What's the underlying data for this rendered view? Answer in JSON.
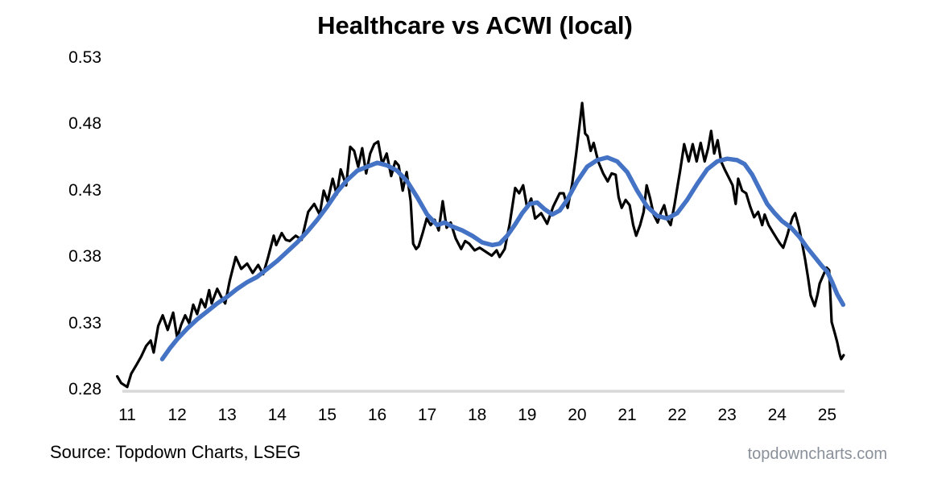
{
  "title": "Healthcare vs ACWI (local)",
  "source": "Source: Topdown Charts, LSEG",
  "watermark": "topdowncharts.com",
  "colors": {
    "black_line": "#000000",
    "blue_line": "#4472C4",
    "baseline": "#D9D9D9",
    "text": "#000000",
    "watermark_text": "#8a9099"
  },
  "chart_data": {
    "type": "line",
    "title": "Healthcare vs ACWI (local)",
    "xlabel": "",
    "ylabel": "",
    "grid": false,
    "legend": "none",
    "x_axis": {
      "min": 10.75,
      "max": 25.5,
      "ticks": [
        11,
        12,
        13,
        14,
        15,
        16,
        17,
        18,
        19,
        20,
        21,
        22,
        23,
        24,
        25
      ]
    },
    "y_axis": {
      "min": 0.28,
      "max": 0.53,
      "ticks": [
        0.53,
        0.48,
        0.43,
        0.38,
        0.33,
        0.28
      ]
    },
    "series": [
      {
        "name": "black",
        "description": "Healthcare vs ACWI relative ratio (daily, local currency)",
        "color": "#000000",
        "width": 3.2,
        "points": [
          [
            10.8,
            0.29
          ],
          [
            10.88,
            0.285
          ],
          [
            11.0,
            0.282
          ],
          [
            11.08,
            0.292
          ],
          [
            11.19,
            0.299
          ],
          [
            11.28,
            0.305
          ],
          [
            11.38,
            0.313
          ],
          [
            11.47,
            0.317
          ],
          [
            11.53,
            0.308
          ],
          [
            11.62,
            0.328
          ],
          [
            11.71,
            0.336
          ],
          [
            11.81,
            0.325
          ],
          [
            11.92,
            0.338
          ],
          [
            12.0,
            0.319
          ],
          [
            12.08,
            0.329
          ],
          [
            12.16,
            0.336
          ],
          [
            12.24,
            0.33
          ],
          [
            12.32,
            0.344
          ],
          [
            12.4,
            0.337
          ],
          [
            12.48,
            0.348
          ],
          [
            12.56,
            0.342
          ],
          [
            12.64,
            0.355
          ],
          [
            12.69,
            0.345
          ],
          [
            12.8,
            0.356
          ],
          [
            12.88,
            0.35
          ],
          [
            12.96,
            0.345
          ],
          [
            13.05,
            0.362
          ],
          [
            13.17,
            0.38
          ],
          [
            13.28,
            0.371
          ],
          [
            13.4,
            0.375
          ],
          [
            13.51,
            0.368
          ],
          [
            13.62,
            0.374
          ],
          [
            13.72,
            0.367
          ],
          [
            13.82,
            0.38
          ],
          [
            13.93,
            0.396
          ],
          [
            13.98,
            0.389
          ],
          [
            14.09,
            0.398
          ],
          [
            14.17,
            0.393
          ],
          [
            14.25,
            0.392
          ],
          [
            14.37,
            0.396
          ],
          [
            14.49,
            0.393
          ],
          [
            14.62,
            0.414
          ],
          [
            14.74,
            0.42
          ],
          [
            14.85,
            0.412
          ],
          [
            14.93,
            0.43
          ],
          [
            15.01,
            0.422
          ],
          [
            15.11,
            0.439
          ],
          [
            15.19,
            0.427
          ],
          [
            15.27,
            0.446
          ],
          [
            15.38,
            0.434
          ],
          [
            15.46,
            0.463
          ],
          [
            15.54,
            0.46
          ],
          [
            15.62,
            0.448
          ],
          [
            15.7,
            0.462
          ],
          [
            15.78,
            0.443
          ],
          [
            15.86,
            0.458
          ],
          [
            15.94,
            0.465
          ],
          [
            16.02,
            0.467
          ],
          [
            16.1,
            0.45
          ],
          [
            16.19,
            0.458
          ],
          [
            16.28,
            0.441
          ],
          [
            16.36,
            0.452
          ],
          [
            16.43,
            0.449
          ],
          [
            16.51,
            0.43
          ],
          [
            16.59,
            0.444
          ],
          [
            16.67,
            0.422
          ],
          [
            16.72,
            0.39
          ],
          [
            16.78,
            0.386
          ],
          [
            16.83,
            0.388
          ],
          [
            16.91,
            0.398
          ],
          [
            16.99,
            0.409
          ],
          [
            17.07,
            0.404
          ],
          [
            17.15,
            0.408
          ],
          [
            17.23,
            0.4
          ],
          [
            17.31,
            0.422
          ],
          [
            17.39,
            0.402
          ],
          [
            17.47,
            0.406
          ],
          [
            17.57,
            0.394
          ],
          [
            17.68,
            0.386
          ],
          [
            17.76,
            0.392
          ],
          [
            17.84,
            0.39
          ],
          [
            17.95,
            0.385
          ],
          [
            18.05,
            0.387
          ],
          [
            18.17,
            0.384
          ],
          [
            18.29,
            0.381
          ],
          [
            18.39,
            0.385
          ],
          [
            18.45,
            0.38
          ],
          [
            18.55,
            0.386
          ],
          [
            18.65,
            0.405
          ],
          [
            18.76,
            0.432
          ],
          [
            18.84,
            0.428
          ],
          [
            18.92,
            0.434
          ],
          [
            19.0,
            0.417
          ],
          [
            19.08,
            0.424
          ],
          [
            19.16,
            0.409
          ],
          [
            19.28,
            0.413
          ],
          [
            19.4,
            0.405
          ],
          [
            19.52,
            0.418
          ],
          [
            19.65,
            0.428
          ],
          [
            19.73,
            0.428
          ],
          [
            19.81,
            0.417
          ],
          [
            19.9,
            0.435
          ],
          [
            19.98,
            0.458
          ],
          [
            20.05,
            0.48
          ],
          [
            20.1,
            0.496
          ],
          [
            20.16,
            0.473
          ],
          [
            20.21,
            0.471
          ],
          [
            20.27,
            0.46
          ],
          [
            20.33,
            0.466
          ],
          [
            20.42,
            0.452
          ],
          [
            20.52,
            0.443
          ],
          [
            20.61,
            0.437
          ],
          [
            20.69,
            0.443
          ],
          [
            20.77,
            0.442
          ],
          [
            20.83,
            0.425
          ],
          [
            20.89,
            0.417
          ],
          [
            20.97,
            0.423
          ],
          [
            21.05,
            0.419
          ],
          [
            21.12,
            0.404
          ],
          [
            21.18,
            0.396
          ],
          [
            21.26,
            0.404
          ],
          [
            21.33,
            0.414
          ],
          [
            21.39,
            0.434
          ],
          [
            21.46,
            0.424
          ],
          [
            21.53,
            0.412
          ],
          [
            21.61,
            0.406
          ],
          [
            21.68,
            0.414
          ],
          [
            21.74,
            0.419
          ],
          [
            21.81,
            0.408
          ],
          [
            21.87,
            0.404
          ],
          [
            21.95,
            0.42
          ],
          [
            22.02,
            0.436
          ],
          [
            22.06,
            0.445
          ],
          [
            22.14,
            0.465
          ],
          [
            22.23,
            0.452
          ],
          [
            22.31,
            0.465
          ],
          [
            22.39,
            0.452
          ],
          [
            22.47,
            0.466
          ],
          [
            22.55,
            0.452
          ],
          [
            22.62,
            0.462
          ],
          [
            22.68,
            0.475
          ],
          [
            22.74,
            0.458
          ],
          [
            22.81,
            0.468
          ],
          [
            22.88,
            0.452
          ],
          [
            22.95,
            0.446
          ],
          [
            23.03,
            0.44
          ],
          [
            23.11,
            0.434
          ],
          [
            23.17,
            0.42
          ],
          [
            23.22,
            0.439
          ],
          [
            23.3,
            0.43
          ],
          [
            23.38,
            0.428
          ],
          [
            23.46,
            0.418
          ],
          [
            23.54,
            0.41
          ],
          [
            23.62,
            0.414
          ],
          [
            23.7,
            0.404
          ],
          [
            23.75,
            0.412
          ],
          [
            23.83,
            0.404
          ],
          [
            23.91,
            0.399
          ],
          [
            23.99,
            0.394
          ],
          [
            24.06,
            0.39
          ],
          [
            24.12,
            0.387
          ],
          [
            24.2,
            0.396
          ],
          [
            24.26,
            0.404
          ],
          [
            24.31,
            0.41
          ],
          [
            24.36,
            0.413
          ],
          [
            24.44,
            0.402
          ],
          [
            24.5,
            0.39
          ],
          [
            24.56,
            0.378
          ],
          [
            24.62,
            0.364
          ],
          [
            24.67,
            0.351
          ],
          [
            24.75,
            0.343
          ],
          [
            24.81,
            0.352
          ],
          [
            24.85,
            0.36
          ],
          [
            24.92,
            0.366
          ],
          [
            24.99,
            0.372
          ],
          [
            25.04,
            0.37
          ],
          [
            25.09,
            0.331
          ],
          [
            25.15,
            0.323
          ],
          [
            25.2,
            0.316
          ],
          [
            25.25,
            0.307
          ],
          [
            25.28,
            0.303
          ],
          [
            25.33,
            0.306
          ]
        ]
      },
      {
        "name": "blue",
        "description": "Smoothed trend (moving average)",
        "color": "#4472C4",
        "width": 5.5,
        "points": [
          [
            11.7,
            0.303
          ],
          [
            11.85,
            0.311
          ],
          [
            12.0,
            0.318
          ],
          [
            12.2,
            0.326
          ],
          [
            12.4,
            0.333
          ],
          [
            12.6,
            0.339
          ],
          [
            12.8,
            0.345
          ],
          [
            13.0,
            0.35
          ],
          [
            13.2,
            0.356
          ],
          [
            13.4,
            0.361
          ],
          [
            13.6,
            0.365
          ],
          [
            13.8,
            0.371
          ],
          [
            14.0,
            0.377
          ],
          [
            14.2,
            0.384
          ],
          [
            14.4,
            0.391
          ],
          [
            14.6,
            0.399
          ],
          [
            14.8,
            0.408
          ],
          [
            15.0,
            0.418
          ],
          [
            15.2,
            0.429
          ],
          [
            15.4,
            0.438
          ],
          [
            15.6,
            0.445
          ],
          [
            15.8,
            0.448
          ],
          [
            16.0,
            0.451
          ],
          [
            16.2,
            0.449
          ],
          [
            16.4,
            0.445
          ],
          [
            16.6,
            0.437
          ],
          [
            16.8,
            0.425
          ],
          [
            17.0,
            0.412
          ],
          [
            17.2,
            0.404
          ],
          [
            17.35,
            0.406
          ],
          [
            17.5,
            0.403
          ],
          [
            17.7,
            0.4
          ],
          [
            17.9,
            0.396
          ],
          [
            18.1,
            0.391
          ],
          [
            18.3,
            0.389
          ],
          [
            18.45,
            0.39
          ],
          [
            18.6,
            0.396
          ],
          [
            18.75,
            0.404
          ],
          [
            18.9,
            0.413
          ],
          [
            19.05,
            0.42
          ],
          [
            19.2,
            0.421
          ],
          [
            19.35,
            0.416
          ],
          [
            19.5,
            0.412
          ],
          [
            19.65,
            0.415
          ],
          [
            19.8,
            0.423
          ],
          [
            20.0,
            0.437
          ],
          [
            20.2,
            0.448
          ],
          [
            20.4,
            0.453
          ],
          [
            20.6,
            0.455
          ],
          [
            20.8,
            0.452
          ],
          [
            21.0,
            0.444
          ],
          [
            21.2,
            0.43
          ],
          [
            21.4,
            0.418
          ],
          [
            21.6,
            0.411
          ],
          [
            21.8,
            0.409
          ],
          [
            22.0,
            0.413
          ],
          [
            22.2,
            0.423
          ],
          [
            22.4,
            0.435
          ],
          [
            22.6,
            0.446
          ],
          [
            22.8,
            0.452
          ],
          [
            23.0,
            0.454
          ],
          [
            23.2,
            0.453
          ],
          [
            23.35,
            0.45
          ],
          [
            23.5,
            0.442
          ],
          [
            23.65,
            0.431
          ],
          [
            23.8,
            0.42
          ],
          [
            23.95,
            0.413
          ],
          [
            24.1,
            0.407
          ],
          [
            24.28,
            0.402
          ],
          [
            24.45,
            0.395
          ],
          [
            24.6,
            0.387
          ],
          [
            24.75,
            0.38
          ],
          [
            24.9,
            0.373
          ],
          [
            25.0,
            0.369
          ],
          [
            25.1,
            0.361
          ],
          [
            25.2,
            0.352
          ],
          [
            25.32,
            0.344
          ]
        ]
      }
    ]
  }
}
